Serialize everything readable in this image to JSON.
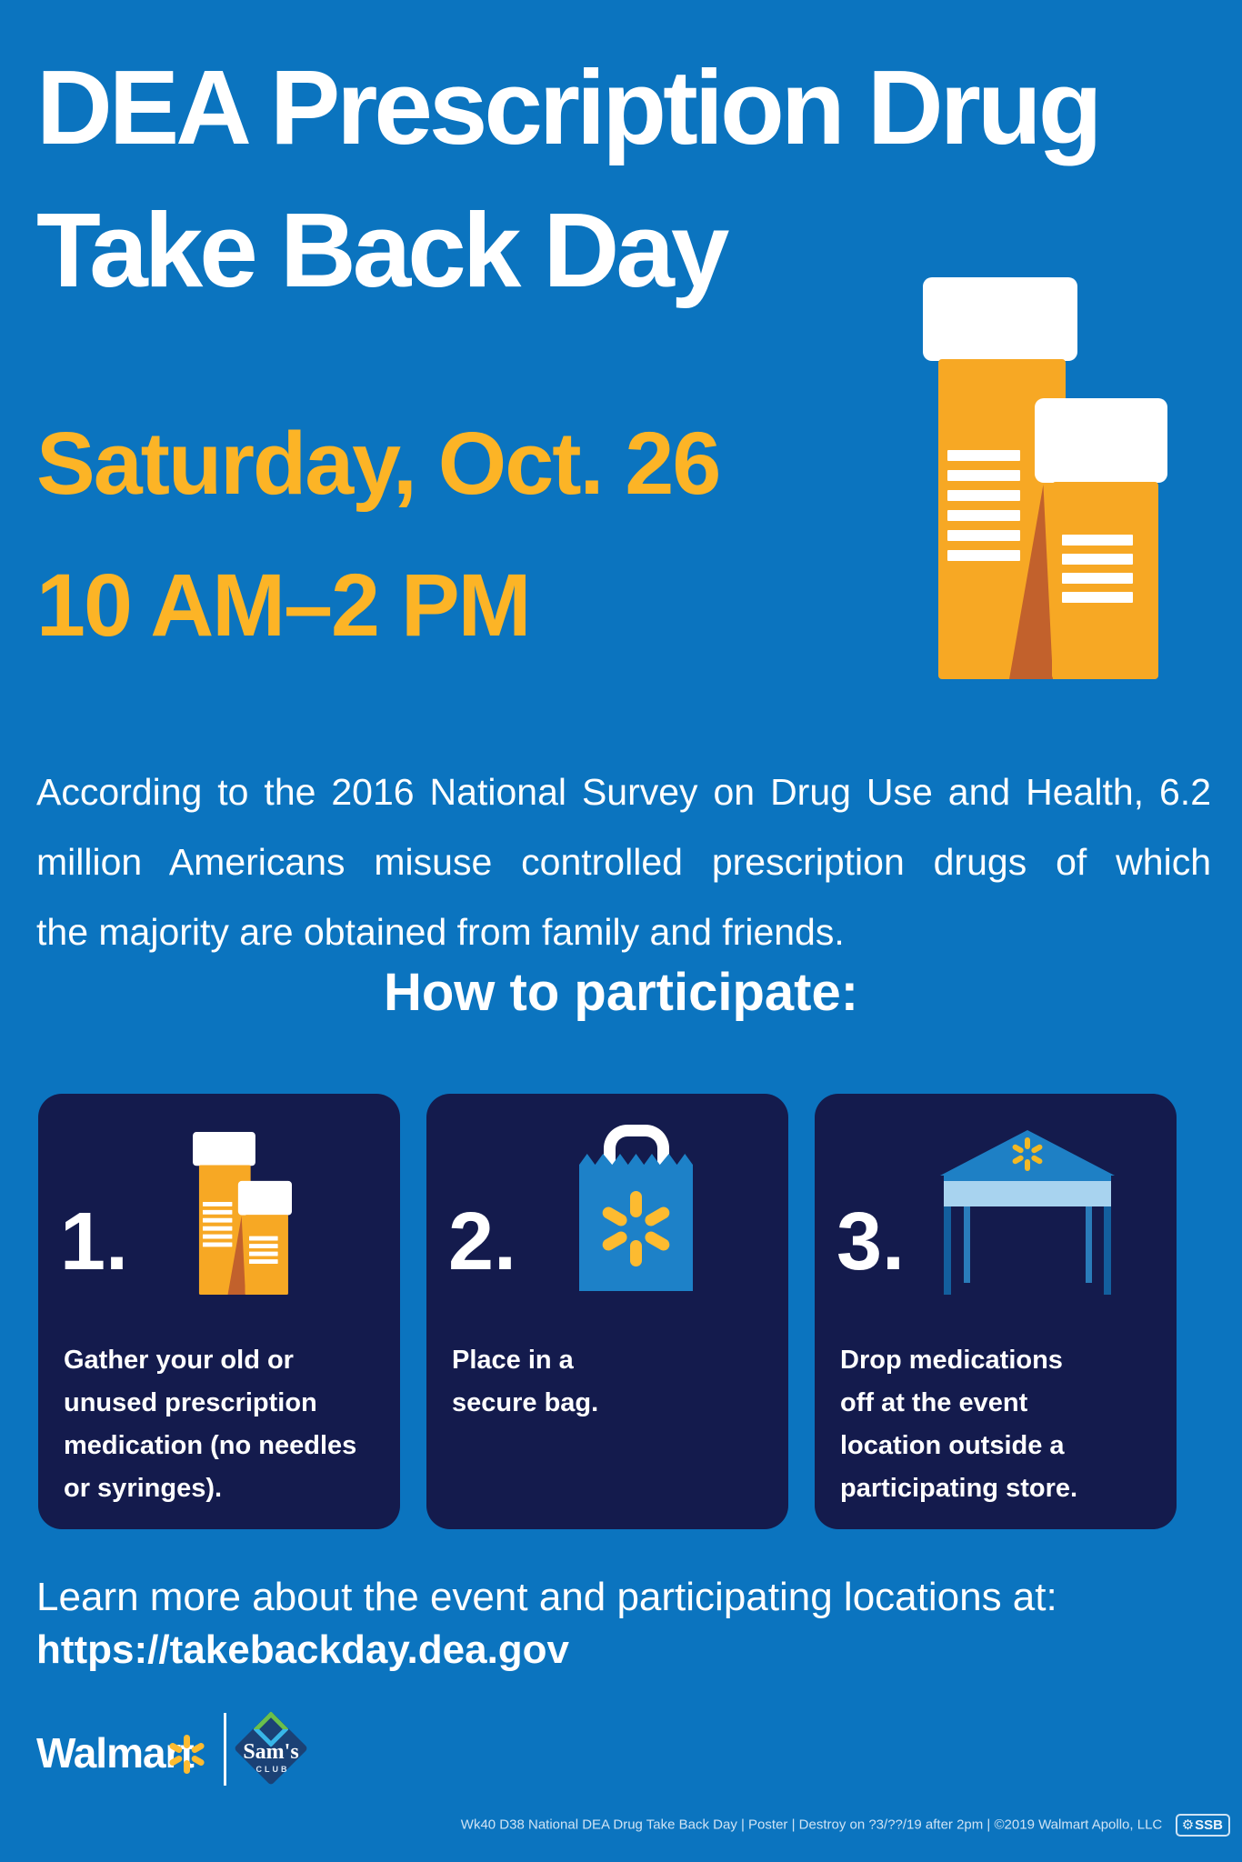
{
  "poster": {
    "title_line1": "DEA Prescription Drug",
    "title_line2": "Take Back Day",
    "date_line1": "Saturday, Oct. 26",
    "date_line2": "10 AM–2 PM",
    "intro_lines": [
      "According to the 2016 National Survey on Drug Use and Health, 6.2",
      "million Americans misuse controlled prescription drugs of which",
      "the majority are obtained from family and friends."
    ],
    "section_heading": "How to participate:",
    "steps": [
      {
        "number": "1.",
        "icon": "pill-bottles-icon",
        "lines": [
          "Gather your old or",
          "unused prescription",
          "medication (no needles",
          "or syringes)."
        ]
      },
      {
        "number": "2.",
        "icon": "walmart-bag-icon",
        "lines": [
          "Place in a",
          "secure bag."
        ]
      },
      {
        "number": "3.",
        "icon": "event-tent-icon",
        "lines": [
          "Drop medications",
          "off at the event",
          "location outside a",
          "participating store."
        ]
      }
    ],
    "learn_more_label": "Learn more about the event and participating locations at:",
    "learn_more_url": "https://takebackday.dea.gov",
    "brand": {
      "walmart": "Walmart",
      "sams_line1": "Sam's",
      "sams_line2": "CLUB"
    },
    "footer_text": "Wk40 D38 National DEA Drug Take Back Day | Poster | Destroy on ?3/??/19 after 2pm | ©2019 Walmart Apollo, LLC",
    "footer_badge": "SSB",
    "colors": {
      "background_blue": "#0b74bf",
      "card_navy": "#141b4d",
      "accent_yellow": "#fcb426",
      "spark_yellow": "#fdbb30",
      "bottle_orange": "#f7a824",
      "bottle_shadow": "#c2612c",
      "bag_blue": "#1d81c8",
      "tent_band_blue": "#a8d3ef",
      "sams_navy": "#1b4175"
    }
  }
}
